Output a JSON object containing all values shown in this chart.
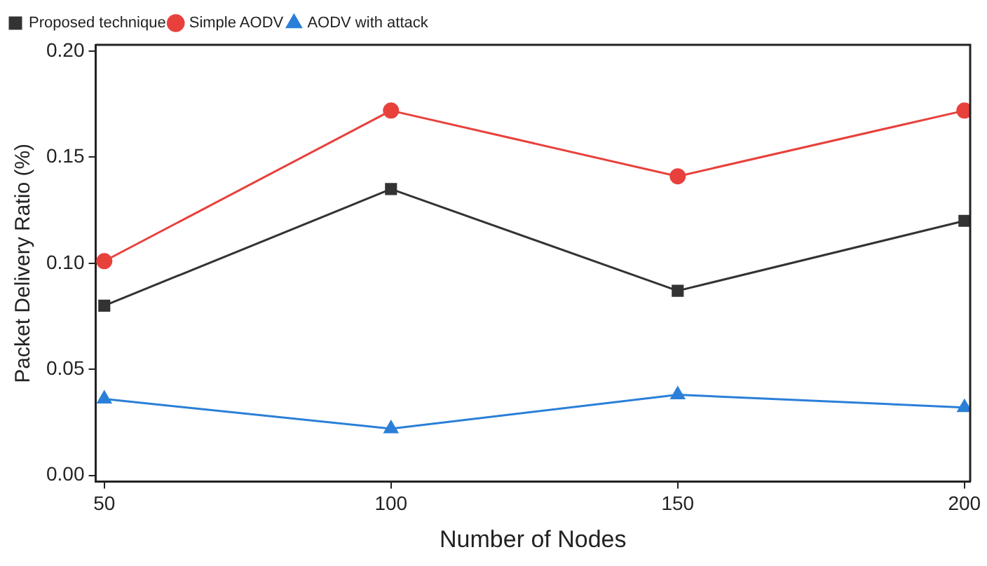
{
  "chart_data": {
    "type": "line",
    "xlabel": "Number of Nodes",
    "ylabel": "Packet Delivery Ratio (%)",
    "x": [
      50,
      100,
      150,
      200
    ],
    "xlim": [
      48.5,
      201
    ],
    "xticks": [
      50,
      100,
      150,
      200
    ],
    "ylim": [
      -0.003,
      0.203
    ],
    "yticks": [
      {
        "value": 0,
        "label": "0.00"
      },
      {
        "value": 0.05,
        "label": "0.05"
      },
      {
        "value": 0.1,
        "label": "0.10"
      },
      {
        "value": 0.15,
        "label": "0.15"
      },
      {
        "value": 0.2,
        "label": "0.20"
      }
    ],
    "grid": false,
    "legend": "top left",
    "line_style": "solid",
    "series": [
      {
        "name": "Proposed technique",
        "color": "#333333",
        "marker": "square",
        "values": [
          0.08,
          0.135,
          0.087,
          0.12
        ]
      },
      {
        "name": "Simple AODV",
        "color": "#e8413c",
        "marker": "circle",
        "values": [
          0.101,
          0.172,
          0.141,
          0.172
        ]
      },
      {
        "name": "AODV with attack",
        "color": "#2a7fd8",
        "marker": "triangle",
        "values": [
          0.036,
          0.022,
          0.038,
          0.032
        ]
      }
    ]
  }
}
